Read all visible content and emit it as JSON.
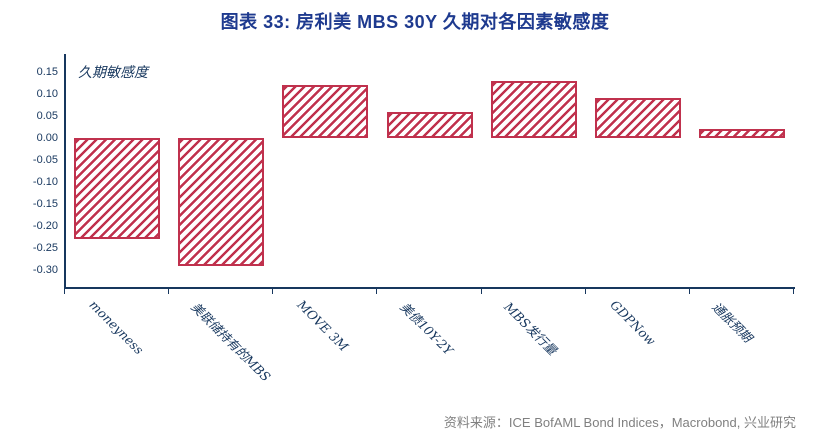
{
  "page": {
    "title": "图表 33: 房利美 MBS 30Y 久期对各因素敏感度",
    "source": "资料来源：ICE BofAML Bond Indices，Macrobond, 兴业研究"
  },
  "chart_data": {
    "type": "bar",
    "title": "图表 33: 房利美 MBS 30Y 久期对各因素敏感度",
    "ylabel": "久期敏感度",
    "xlabel": "",
    "categories": [
      "moneyness",
      "美联储持有的MBS",
      "MOVE 3M",
      "美债10Y-2Y",
      "MBS发行量",
      "GDPNow",
      "通胀预期"
    ],
    "values": [
      -0.23,
      -0.29,
      0.12,
      0.06,
      0.13,
      0.09,
      0.02
    ],
    "yticks": [
      "0.15",
      "0.10",
      "0.05",
      "0.00",
      "-0.05",
      "-0.10",
      "-0.15",
      "-0.20",
      "-0.25",
      "-0.30"
    ],
    "ylim": [
      -0.345,
      0.17
    ],
    "grid": false,
    "legend": "none",
    "bar_style": "diagonal-hatch",
    "colors": {
      "bar_hatch": "#C0314D",
      "axis": "#17375E",
      "title": "#1E3A8F",
      "source_text": "#808080"
    }
  }
}
